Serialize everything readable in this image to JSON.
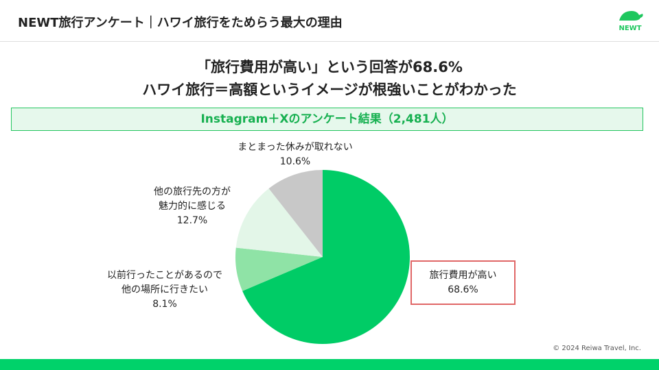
{
  "header": {
    "title": "NEWT旅行アンケート｜ハワイ旅行をためらう最大の理由",
    "logo_text": "NEWT"
  },
  "headline": {
    "line1": "「旅行費用が高い」という回答が68.6%",
    "line2": "ハワイ旅行＝高額というイメージが根強いことがわかった"
  },
  "banner": "Instagram＋Xのアンケート結果（2,481人）",
  "chart_data": {
    "type": "pie",
    "start": "top, clockwise",
    "slices": [
      {
        "label": "旅行費用が高い",
        "value": 68.6,
        "value_label": "68.6%",
        "color": "#00cc66",
        "highlighted": true
      },
      {
        "label": "以前行ったことがあるので他の場所に行きたい",
        "label_lines": [
          "以前行ったことがあるので",
          "他の場所に行きたい"
        ],
        "value": 8.1,
        "value_label": "8.1%",
        "color": "#8fe3a6"
      },
      {
        "label": "他の旅行先の方が魅力的に感じる",
        "label_lines": [
          "他の旅行先の方が",
          "魅力的に感じる"
        ],
        "value": 12.7,
        "value_label": "12.7%",
        "color": "#e3f6e8"
      },
      {
        "label": "まとまった休みが取れない",
        "label_lines": [
          "まとまった休みが取れない"
        ],
        "value": 10.6,
        "value_label": "10.6%",
        "color": "#c8c8c8"
      }
    ]
  },
  "footer": {
    "copyright": "© 2024 Reiwa Travel, Inc.",
    "accent": "#00d26a"
  }
}
